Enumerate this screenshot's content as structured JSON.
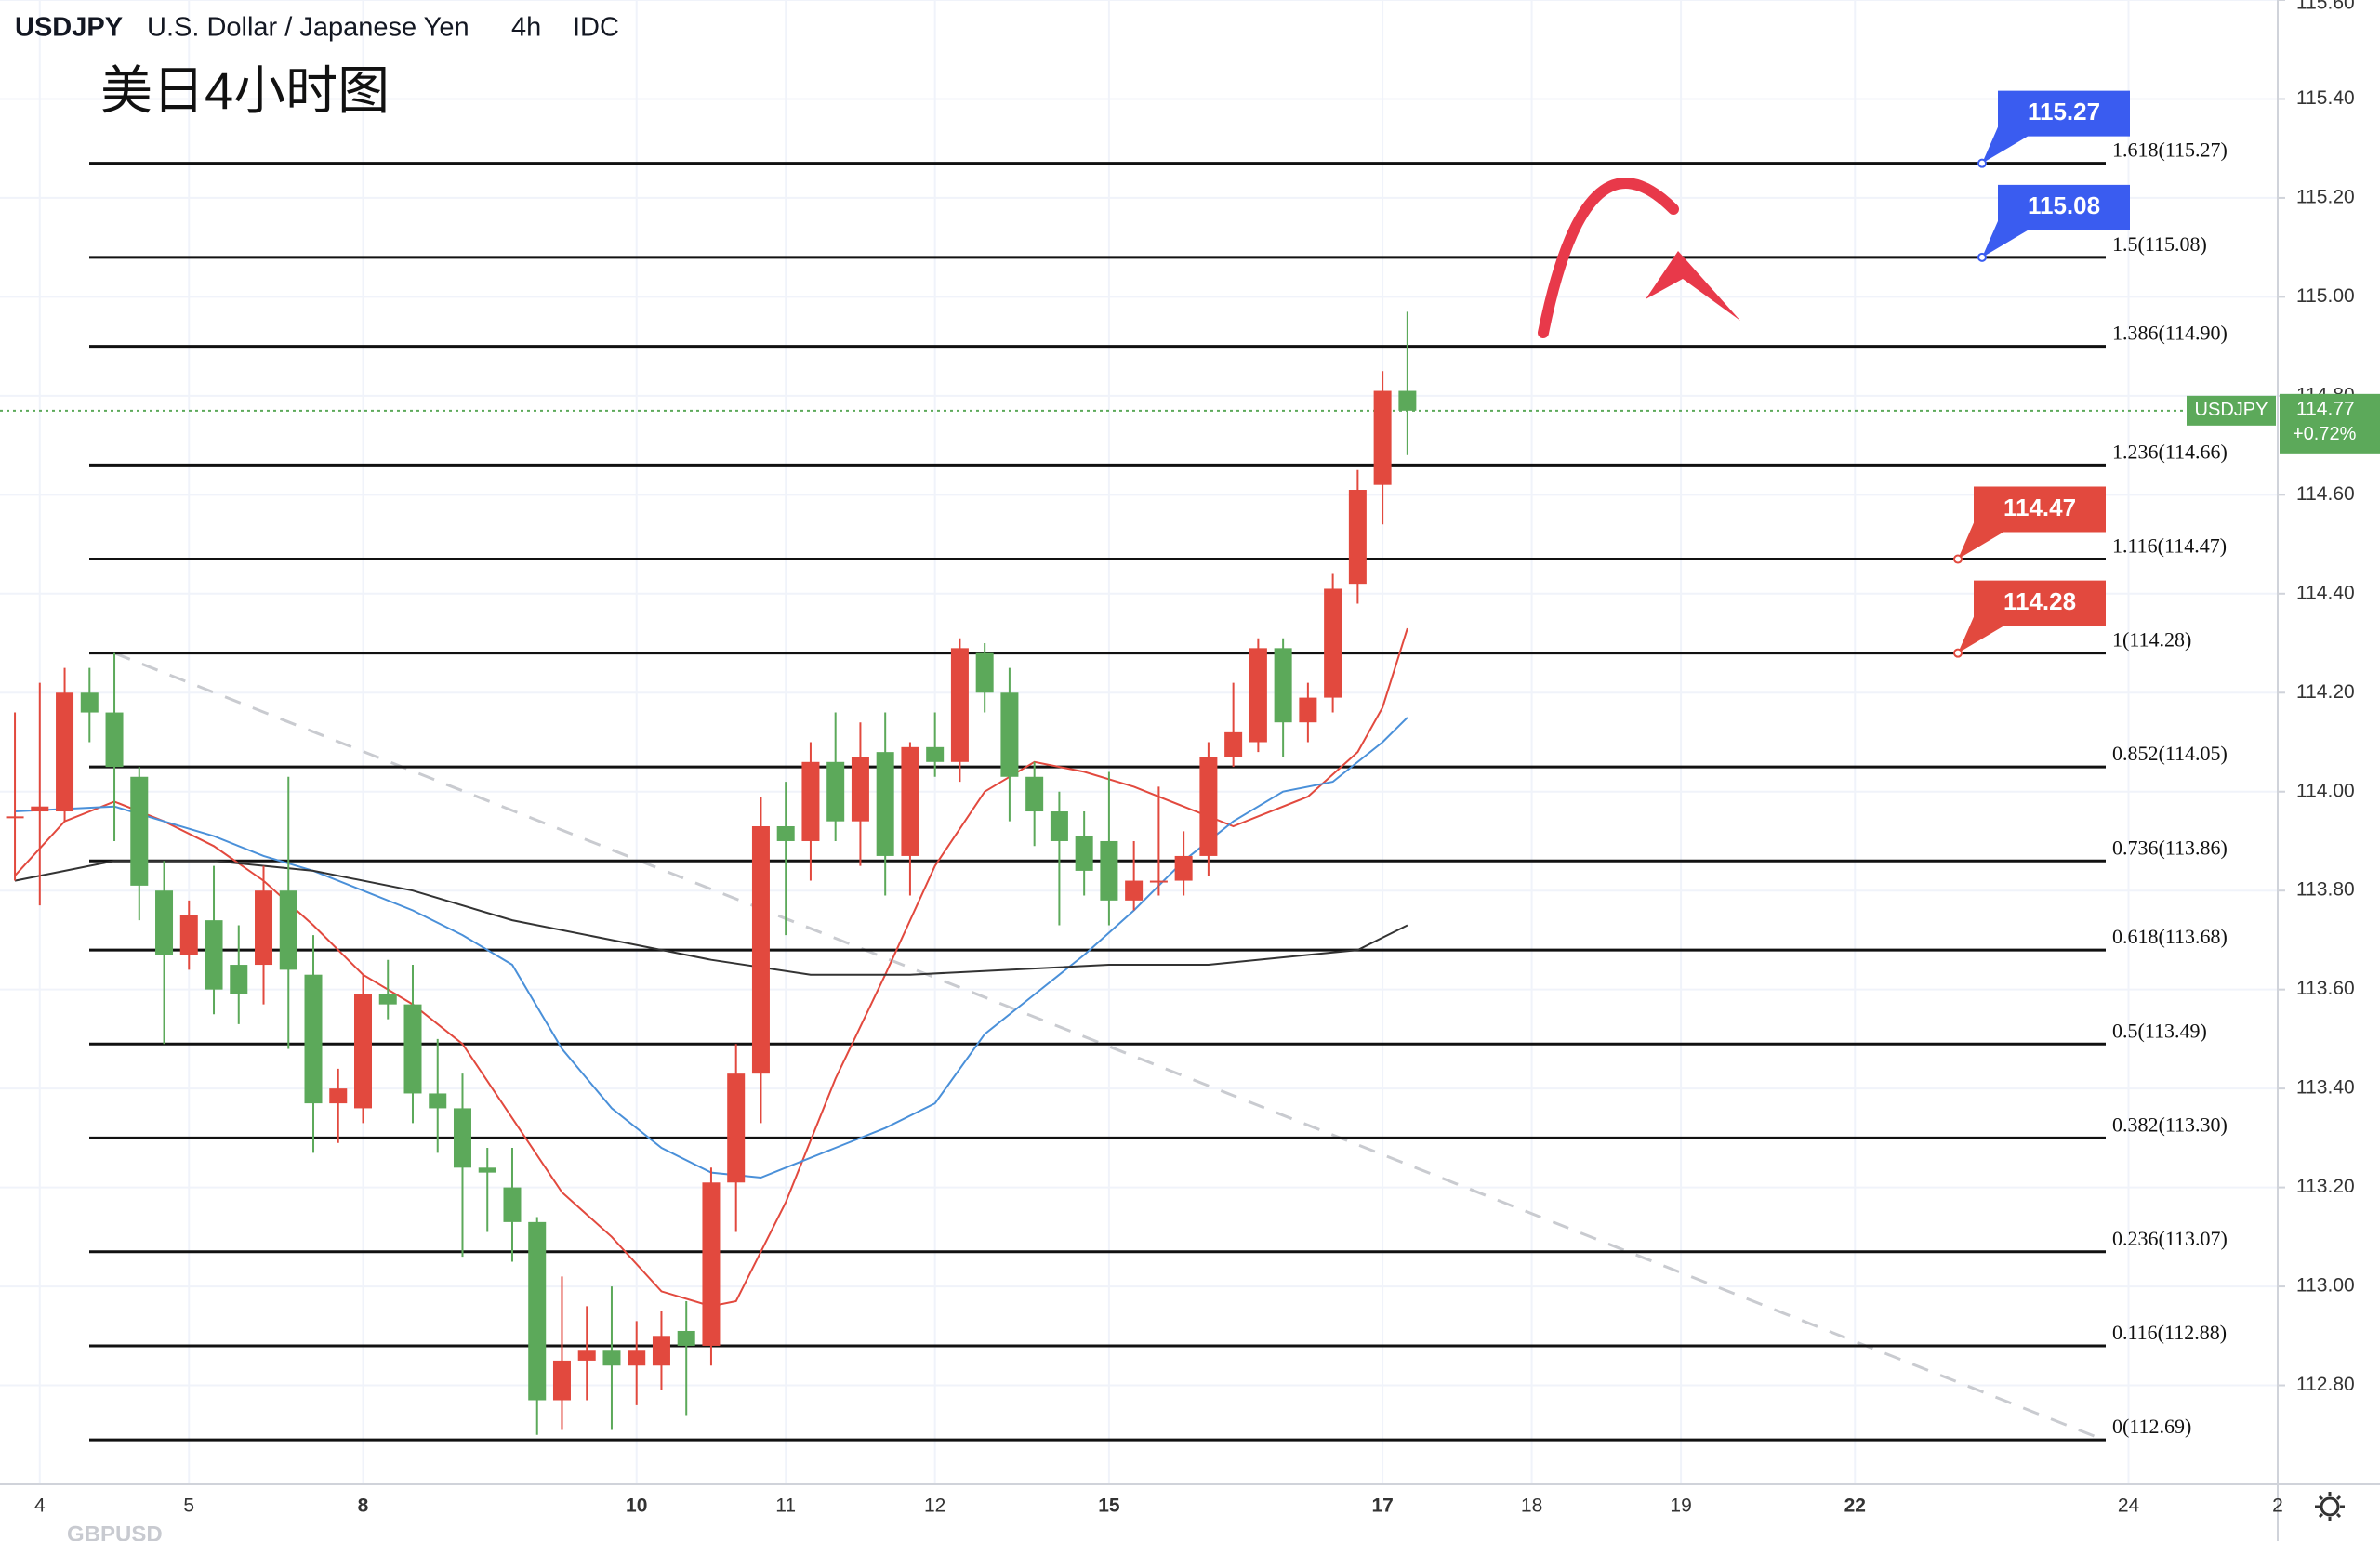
{
  "chart_data": {
    "type": "candlestick",
    "title": "USDJPY",
    "subtitle": "U.S. Dollar / Japanese Yen",
    "interval": "4h",
    "source": "IDC",
    "annotation": "美日4小时图",
    "footer": "GBPUSD",
    "up_color": "#e2493e",
    "down_color": "#5ca95a",
    "open": [
      113.95,
      113.96,
      113.96,
      114.2,
      114.16,
      114.03,
      113.8,
      113.67,
      113.74,
      113.65,
      113.65,
      113.8,
      113.63,
      113.37,
      113.36,
      113.59,
      113.57,
      113.39,
      113.36,
      113.24,
      113.2,
      113.13,
      112.77,
      112.85,
      112.87,
      112.84,
      112.84,
      112.91,
      112.88,
      113.21,
      113.43,
      113.93,
      113.9,
      114.06,
      113.94,
      114.08,
      113.87,
      114.09,
      114.06,
      114.28,
      114.2,
      114.03,
      113.96,
      113.91,
      113.9,
      113.78,
      113.82,
      113.82,
      113.87,
      114.07,
      114.1,
      114.29,
      114.14,
      114.19,
      114.42,
      114.62,
      114.81
    ],
    "high": [
      114.16,
      114.22,
      114.25,
      114.25,
      114.28,
      114.05,
      113.86,
      113.78,
      113.85,
      113.73,
      113.85,
      114.03,
      113.71,
      113.44,
      113.63,
      113.66,
      113.65,
      113.5,
      113.43,
      113.28,
      113.28,
      113.14,
      113.02,
      112.96,
      113.0,
      112.93,
      112.95,
      112.97,
      113.24,
      113.49,
      113.99,
      114.02,
      114.1,
      114.16,
      114.14,
      114.16,
      114.1,
      114.16,
      114.31,
      114.3,
      114.25,
      114.06,
      114.0,
      113.96,
      114.04,
      113.9,
      114.01,
      113.92,
      114.1,
      114.22,
      114.31,
      114.31,
      114.22,
      114.44,
      114.65,
      114.85,
      114.97
    ],
    "low": [
      113.82,
      113.77,
      113.94,
      114.1,
      113.9,
      113.74,
      113.49,
      113.64,
      113.55,
      113.53,
      113.57,
      113.48,
      113.27,
      113.29,
      113.33,
      113.54,
      113.33,
      113.27,
      113.06,
      113.11,
      113.05,
      112.7,
      112.71,
      112.77,
      112.71,
      112.76,
      112.79,
      112.74,
      112.84,
      113.11,
      113.33,
      113.71,
      113.82,
      113.9,
      113.85,
      113.79,
      113.79,
      114.03,
      114.02,
      114.16,
      113.94,
      113.89,
      113.73,
      113.79,
      113.73,
      113.76,
      113.79,
      113.79,
      113.83,
      114.05,
      114.08,
      114.07,
      114.1,
      114.16,
      114.38,
      114.54,
      114.68
    ],
    "close": [
      113.95,
      113.97,
      114.2,
      114.16,
      114.05,
      113.81,
      113.67,
      113.75,
      113.6,
      113.59,
      113.8,
      113.64,
      113.37,
      113.4,
      113.59,
      113.57,
      113.39,
      113.36,
      113.24,
      113.23,
      113.13,
      112.77,
      112.85,
      112.87,
      112.84,
      112.87,
      112.9,
      112.88,
      113.21,
      113.43,
      113.93,
      113.9,
      114.06,
      113.94,
      114.07,
      113.87,
      114.09,
      114.06,
      114.29,
      114.2,
      114.03,
      113.96,
      113.9,
      113.84,
      113.78,
      113.82,
      113.82,
      113.87,
      114.07,
      114.12,
      114.29,
      114.14,
      114.19,
      114.41,
      114.61,
      114.81,
      114.77
    ],
    "moving_averages": [
      {
        "color": "#e2493e",
        "x": [
          0,
          2,
          4,
          6,
          8,
          10,
          12,
          14,
          16,
          18,
          20,
          22,
          24,
          26,
          28,
          29,
          30,
          31,
          33,
          35,
          37,
          39,
          41,
          43,
          45,
          47,
          49,
          50,
          52,
          54,
          55,
          56
        ],
        "values": [
          113.83,
          113.94,
          113.98,
          113.94,
          113.89,
          113.82,
          113.73,
          113.63,
          113.57,
          113.49,
          113.34,
          113.19,
          113.1,
          112.99,
          112.96,
          112.97,
          113.07,
          113.17,
          113.42,
          113.63,
          113.85,
          114.0,
          114.06,
          114.04,
          114.01,
          113.97,
          113.93,
          113.95,
          113.99,
          114.08,
          114.17,
          114.33
        ]
      },
      {
        "color": "#4a90d9",
        "x": [
          0,
          4,
          6,
          8,
          10,
          12,
          14,
          16,
          18,
          20,
          22,
          24,
          26,
          28,
          30,
          31,
          33,
          35,
          37,
          39,
          41,
          43,
          45,
          47,
          49,
          51,
          53,
          55,
          56
        ],
        "values": [
          113.96,
          113.97,
          113.94,
          113.91,
          113.87,
          113.84,
          113.8,
          113.76,
          113.71,
          113.65,
          113.48,
          113.36,
          113.28,
          113.23,
          113.22,
          113.24,
          113.28,
          113.32,
          113.37,
          113.51,
          113.59,
          113.67,
          113.76,
          113.86,
          113.94,
          114.0,
          114.02,
          114.1,
          114.15
        ]
      },
      {
        "color": "#333333",
        "x": [
          0,
          4,
          8,
          12,
          16,
          20,
          24,
          28,
          32,
          36,
          40,
          44,
          48,
          52,
          54,
          56
        ],
        "values": [
          113.82,
          113.86,
          113.86,
          113.84,
          113.8,
          113.74,
          113.7,
          113.66,
          113.63,
          113.63,
          113.64,
          113.65,
          113.65,
          113.67,
          113.68,
          113.73
        ]
      }
    ],
    "trendline": {
      "x": [
        4,
        84
      ],
      "values": [
        114.28,
        112.69
      ]
    },
    "levels": [
      {
        "value": 115.27,
        "label": "1.618(115.27)"
      },
      {
        "value": 115.08,
        "label": "1.5(115.08)"
      },
      {
        "value": 114.9,
        "label": "1.386(114.90)"
      },
      {
        "value": 114.66,
        "label": "1.236(114.66)"
      },
      {
        "value": 114.47,
        "label": "1.116(114.47)"
      },
      {
        "value": 114.28,
        "label": "1(114.28)"
      },
      {
        "value": 114.05,
        "label": "0.852(114.05)"
      },
      {
        "value": 113.86,
        "label": "0.736(113.86)"
      },
      {
        "value": 113.68,
        "label": "0.618(113.68)"
      },
      {
        "value": 113.49,
        "label": "0.5(113.49)"
      },
      {
        "value": 113.3,
        "label": "0.382(113.30)"
      },
      {
        "value": 113.07,
        "label": "0.236(113.07)"
      },
      {
        "value": 112.88,
        "label": "0.116(112.88)"
      },
      {
        "value": 112.69,
        "label": "0(112.69)"
      }
    ],
    "callouts": [
      {
        "value": 115.27,
        "color": "#3a5cf0"
      },
      {
        "value": 115.08,
        "color": "#3a5cf0"
      },
      {
        "value": 114.47,
        "color": "#e2493e"
      },
      {
        "value": 114.28,
        "color": "#e2493e"
      }
    ],
    "last": {
      "name": "USDJPY",
      "value": 114.77,
      "change": "+0.72%",
      "color": "#5ca95a"
    },
    "xlim": [
      -0.6,
      91
    ],
    "xticks": [
      {
        "value": 1,
        "label": "4"
      },
      {
        "value": 7,
        "label": "5"
      },
      {
        "value": 14,
        "label": "8"
      },
      {
        "value": 25,
        "label": "10"
      },
      {
        "value": 31,
        "label": "11"
      },
      {
        "value": 37,
        "label": "12"
      },
      {
        "value": 44,
        "label": "15"
      },
      {
        "value": 55,
        "label": "17"
      },
      {
        "value": 61,
        "label": "18"
      },
      {
        "value": 67,
        "label": "19"
      },
      {
        "value": 74,
        "label": "22"
      },
      {
        "value": 85,
        "label": "24"
      },
      {
        "value": 91,
        "label": "2"
      }
    ],
    "ylim": [
      112.6,
      115.6
    ],
    "yticks": [
      {
        "value": 112.8,
        "label": "112.80"
      },
      {
        "value": 113.0,
        "label": "113.00"
      },
      {
        "value": 113.2,
        "label": "113.20"
      },
      {
        "value": 113.4,
        "label": "113.40"
      },
      {
        "value": 113.6,
        "label": "113.60"
      },
      {
        "value": 113.8,
        "label": "113.80"
      },
      {
        "value": 114.0,
        "label": "114.00"
      },
      {
        "value": 114.2,
        "label": "114.20"
      },
      {
        "value": 114.4,
        "label": "114.40"
      },
      {
        "value": 114.6,
        "label": "114.60"
      },
      {
        "value": 114.8,
        "label": "114.80"
      },
      {
        "value": 115.0,
        "label": "115.00"
      },
      {
        "value": 115.2,
        "label": "115.20"
      },
      {
        "value": 115.4,
        "label": "115.40"
      },
      {
        "value": 115.6,
        "label": "115.60"
      }
    ],
    "grid": true
  }
}
